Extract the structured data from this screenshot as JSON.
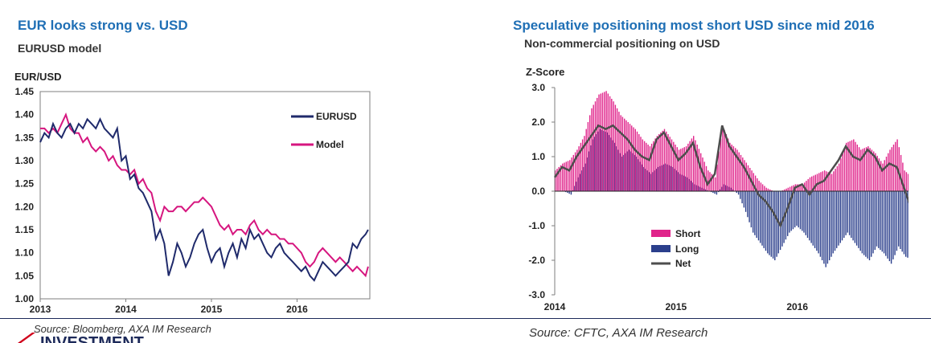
{
  "left": {
    "title": "EUR looks strong vs. USD",
    "subtitle": "EURUSD model",
    "source": "Source: Bloomberg, AXA IM Research"
  },
  "right": {
    "title": "Speculative positioning most short USD since mid 2016",
    "subtitle": "Non-commercial positioning on USD",
    "source": "Source: CFTC, AXA IM Research"
  },
  "footer": {
    "logo_text": "INVESTMENT"
  },
  "colors": {
    "eurusd": "#1f2a6b",
    "model": "#d6167f",
    "short": "#e0248b",
    "long": "#2b3f8c",
    "net": "#4d4d4d",
    "title": "#1f6fb5"
  },
  "chart_data": [
    {
      "type": "line",
      "title": "EURUSD model",
      "ylabel": "EUR/USD",
      "xlabel": "",
      "ylim": [
        1.0,
        1.45
      ],
      "yticks": [
        "1.45",
        "1.40",
        "1.35",
        "1.30",
        "1.25",
        "1.20",
        "1.15",
        "1.10",
        "1.05",
        "1.00"
      ],
      "xticks": [
        "2013",
        "2014",
        "2015",
        "2016"
      ],
      "xlim": [
        2013.0,
        2016.85
      ],
      "legend_position": "right",
      "series": [
        {
          "name": "EURUSD",
          "color": "#1f2a6b",
          "x": [
            2013.0,
            2013.05,
            2013.1,
            2013.15,
            2013.2,
            2013.25,
            2013.3,
            2013.35,
            2013.4,
            2013.45,
            2013.5,
            2013.55,
            2013.6,
            2013.65,
            2013.7,
            2013.75,
            2013.8,
            2013.85,
            2013.9,
            2013.95,
            2014.0,
            2014.05,
            2014.1,
            2014.15,
            2014.2,
            2014.25,
            2014.3,
            2014.35,
            2014.4,
            2014.45,
            2014.5,
            2014.55,
            2014.6,
            2014.65,
            2014.7,
            2014.75,
            2014.8,
            2014.85,
            2014.9,
            2014.95,
            2015.0,
            2015.05,
            2015.1,
            2015.15,
            2015.2,
            2015.25,
            2015.3,
            2015.35,
            2015.4,
            2015.45,
            2015.5,
            2015.55,
            2015.6,
            2015.65,
            2015.7,
            2015.75,
            2015.8,
            2015.85,
            2015.9,
            2015.95,
            2016.0,
            2016.05,
            2016.1,
            2016.15,
            2016.2,
            2016.25,
            2016.3,
            2016.35,
            2016.4,
            2016.45,
            2016.5,
            2016.55,
            2016.6,
            2016.65,
            2016.7,
            2016.75,
            2016.8,
            2016.83
          ],
          "values": [
            1.34,
            1.36,
            1.35,
            1.38,
            1.36,
            1.35,
            1.37,
            1.38,
            1.36,
            1.38,
            1.37,
            1.39,
            1.38,
            1.37,
            1.39,
            1.37,
            1.36,
            1.35,
            1.37,
            1.3,
            1.31,
            1.26,
            1.27,
            1.24,
            1.23,
            1.21,
            1.19,
            1.13,
            1.15,
            1.12,
            1.05,
            1.08,
            1.12,
            1.1,
            1.07,
            1.09,
            1.12,
            1.14,
            1.15,
            1.11,
            1.08,
            1.1,
            1.11,
            1.07,
            1.1,
            1.12,
            1.09,
            1.13,
            1.11,
            1.15,
            1.13,
            1.14,
            1.12,
            1.1,
            1.09,
            1.11,
            1.12,
            1.1,
            1.09,
            1.08,
            1.07,
            1.06,
            1.07,
            1.05,
            1.04,
            1.06,
            1.08,
            1.07,
            1.06,
            1.05,
            1.06,
            1.07,
            1.08,
            1.12,
            1.11,
            1.13,
            1.14,
            1.15
          ]
        },
        {
          "name": "Model",
          "color": "#d6167f",
          "x": [
            2013.0,
            2013.05,
            2013.1,
            2013.15,
            2013.2,
            2013.25,
            2013.3,
            2013.35,
            2013.4,
            2013.45,
            2013.5,
            2013.55,
            2013.6,
            2013.65,
            2013.7,
            2013.75,
            2013.8,
            2013.85,
            2013.9,
            2013.95,
            2014.0,
            2014.05,
            2014.1,
            2014.15,
            2014.2,
            2014.25,
            2014.3,
            2014.35,
            2014.4,
            2014.45,
            2014.5,
            2014.55,
            2014.6,
            2014.65,
            2014.7,
            2014.75,
            2014.8,
            2014.85,
            2014.9,
            2014.95,
            2015.0,
            2015.05,
            2015.1,
            2015.15,
            2015.2,
            2015.25,
            2015.3,
            2015.35,
            2015.4,
            2015.45,
            2015.5,
            2015.55,
            2015.6,
            2015.65,
            2015.7,
            2015.75,
            2015.8,
            2015.85,
            2015.9,
            2015.95,
            2016.0,
            2016.05,
            2016.1,
            2016.15,
            2016.2,
            2016.25,
            2016.3,
            2016.35,
            2016.4,
            2016.45,
            2016.5,
            2016.55,
            2016.6,
            2016.65,
            2016.7,
            2016.75,
            2016.8,
            2016.83
          ],
          "values": [
            1.37,
            1.37,
            1.36,
            1.37,
            1.36,
            1.38,
            1.4,
            1.37,
            1.36,
            1.36,
            1.34,
            1.35,
            1.33,
            1.32,
            1.33,
            1.32,
            1.3,
            1.31,
            1.29,
            1.28,
            1.28,
            1.27,
            1.28,
            1.25,
            1.26,
            1.24,
            1.23,
            1.19,
            1.17,
            1.2,
            1.19,
            1.19,
            1.2,
            1.2,
            1.19,
            1.2,
            1.21,
            1.21,
            1.22,
            1.21,
            1.2,
            1.18,
            1.16,
            1.15,
            1.16,
            1.14,
            1.15,
            1.15,
            1.14,
            1.16,
            1.17,
            1.15,
            1.14,
            1.15,
            1.14,
            1.14,
            1.13,
            1.13,
            1.12,
            1.12,
            1.11,
            1.1,
            1.08,
            1.07,
            1.08,
            1.1,
            1.11,
            1.1,
            1.09,
            1.08,
            1.09,
            1.08,
            1.07,
            1.06,
            1.07,
            1.06,
            1.05,
            1.07
          ]
        }
      ],
      "legend": [
        "EURUSD",
        "Model"
      ]
    },
    {
      "type": "bar",
      "title": "Non-commercial positioning on USD",
      "ylabel": "Z-Score",
      "xlabel": "",
      "ylim": [
        -3.0,
        3.0
      ],
      "yticks": [
        "3.0",
        "2.0",
        "1.0",
        "0.0",
        "-1.0",
        "-2.0",
        "-3.0"
      ],
      "xticks": [
        "2014",
        "2015",
        "2016"
      ],
      "xlim": [
        2014.0,
        2016.97
      ],
      "legend_position": "bottom-left",
      "legend": [
        "Short",
        "Long",
        "Net"
      ],
      "x": [
        2014.0,
        2014.06,
        2014.12,
        2014.18,
        2014.24,
        2014.3,
        2014.36,
        2014.42,
        2014.48,
        2014.54,
        2014.6,
        2014.66,
        2014.72,
        2014.78,
        2014.84,
        2014.9,
        2014.96,
        2015.02,
        2015.08,
        2015.14,
        2015.2,
        2015.26,
        2015.32,
        2015.38,
        2015.44,
        2015.5,
        2015.56,
        2015.62,
        2015.68,
        2015.74,
        2015.8,
        2015.86,
        2015.92,
        2015.98,
        2016.04,
        2016.1,
        2016.16,
        2016.22,
        2016.28,
        2016.34,
        2016.4,
        2016.46,
        2016.52,
        2016.58,
        2016.64,
        2016.7,
        2016.76,
        2016.82,
        2016.88,
        2016.94
      ],
      "series": [
        {
          "name": "Short",
          "color": "#e0248b",
          "values": [
            0.6,
            0.8,
            0.9,
            1.2,
            1.6,
            2.4,
            2.8,
            2.9,
            2.6,
            2.2,
            2.0,
            1.8,
            1.5,
            1.3,
            1.6,
            1.8,
            1.5,
            1.2,
            1.3,
            1.6,
            1.1,
            0.6,
            0.4,
            1.9,
            1.4,
            1.2,
            0.9,
            0.6,
            0.3,
            0.1,
            0.0,
            0.0,
            0.1,
            0.2,
            0.2,
            0.4,
            0.5,
            0.6,
            0.5,
            0.8,
            1.4,
            1.5,
            1.2,
            1.3,
            1.1,
            0.8,
            1.2,
            1.5,
            0.6,
            0.4
          ]
        },
        {
          "name": "Long",
          "color": "#2b3f8c",
          "values": [
            0.0,
            0.0,
            -0.1,
            0.4,
            0.8,
            1.5,
            1.8,
            1.7,
            1.4,
            1.0,
            1.2,
            1.0,
            0.7,
            0.5,
            0.7,
            0.8,
            0.7,
            0.5,
            0.4,
            0.2,
            0.1,
            0.0,
            -0.1,
            0.2,
            0.1,
            -0.1,
            -0.6,
            -1.2,
            -1.5,
            -1.8,
            -2.0,
            -1.6,
            -1.2,
            -1.0,
            -1.2,
            -1.5,
            -1.8,
            -2.2,
            -1.8,
            -1.5,
            -1.2,
            -1.5,
            -1.8,
            -2.0,
            -1.6,
            -1.8,
            -2.1,
            -1.6,
            -1.9,
            -2.0
          ]
        },
        {
          "name": "Net",
          "color": "#4d4d4d",
          "values": [
            0.4,
            0.7,
            0.6,
            1.0,
            1.3,
            1.6,
            1.9,
            1.8,
            1.9,
            1.7,
            1.5,
            1.2,
            1.0,
            0.9,
            1.5,
            1.7,
            1.3,
            0.9,
            1.1,
            1.4,
            0.7,
            0.2,
            0.5,
            1.9,
            1.3,
            1.0,
            0.7,
            0.3,
            -0.1,
            -0.3,
            -0.6,
            -1.0,
            -0.5,
            0.1,
            0.2,
            -0.1,
            0.2,
            0.3,
            0.6,
            0.9,
            1.3,
            1.0,
            0.9,
            1.2,
            1.0,
            0.6,
            0.8,
            0.7,
            0.1,
            -0.5
          ]
        }
      ]
    }
  ]
}
